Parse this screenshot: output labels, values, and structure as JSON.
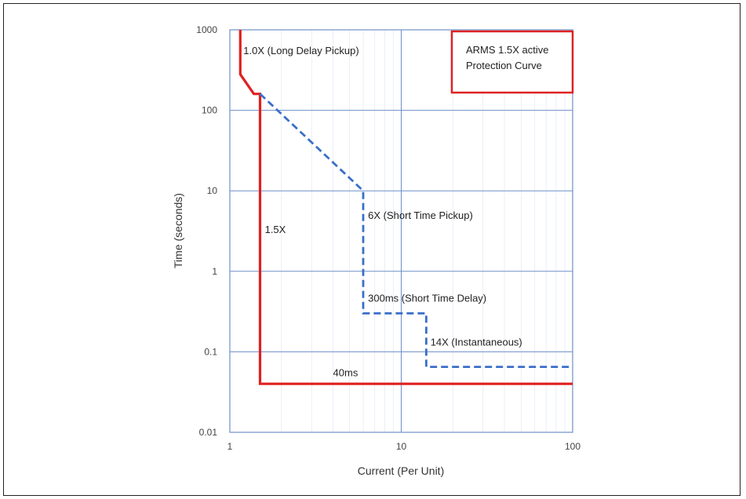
{
  "chart_data": {
    "type": "line",
    "xlabel": "Current (Per Unit)",
    "ylabel": "Time (seconds)",
    "x_scale": "log",
    "y_scale": "log",
    "xlim": [
      1,
      100
    ],
    "ylim": [
      0.01,
      1000
    ],
    "grid": true,
    "x_ticks": [
      "1",
      "10",
      "100"
    ],
    "y_ticks": [
      "1000",
      "100",
      "10",
      "1",
      "0.1",
      "0.01"
    ],
    "legend": {
      "text": [
        "ARMS 1.5X active",
        "Protection Curve"
      ],
      "color": "#dd2222",
      "placement": "top-right"
    },
    "series": [
      {
        "color": "#e02020",
        "style": "solid",
        "points": [
          [
            1.15,
            1000
          ],
          [
            1.15,
            280
          ],
          [
            1.38,
            160
          ],
          [
            1.5,
            160
          ],
          [
            1.5,
            0.04
          ],
          [
            100,
            0.04
          ]
        ]
      },
      {
        "color": "#3a6fc8",
        "style": "dashed",
        "points": [
          [
            1.5,
            160
          ],
          [
            6,
            10
          ],
          [
            6,
            0.3
          ],
          [
            14,
            0.3
          ],
          [
            14,
            0.065
          ],
          [
            100,
            0.065
          ]
        ]
      }
    ],
    "annotations": [
      {
        "text": "1.0X (Long Delay Pickup)",
        "x": 1.2,
        "y": 500
      },
      {
        "text": "1.5X",
        "x": 1.6,
        "y": 3
      },
      {
        "text": "6X (Short Time Pickup)",
        "x": 6.4,
        "y": 4.5
      },
      {
        "text": "300ms (Short Time Delay)",
        "x": 6.4,
        "y": 0.42
      },
      {
        "text": "14X (Instantaneous)",
        "x": 14.8,
        "y": 0.12
      },
      {
        "text": "40ms",
        "x": 4,
        "y": 0.05
      }
    ]
  }
}
